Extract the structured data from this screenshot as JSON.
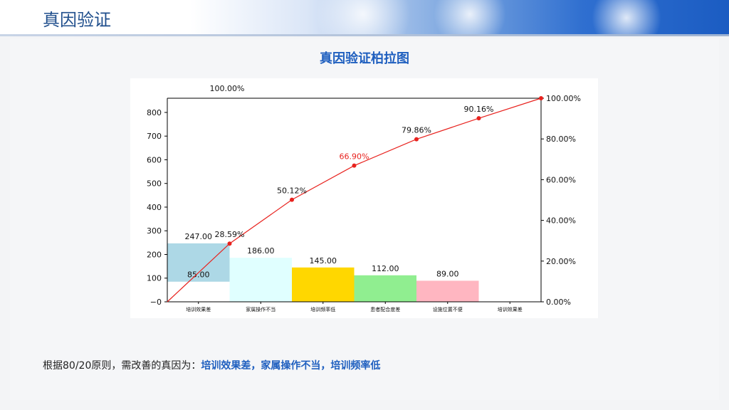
{
  "header": {
    "title": "真因验证"
  },
  "chart_data": {
    "type": "bar",
    "title": "真因验证柏拉图",
    "categories": [
      "培训效果差",
      "家属操作不当",
      "培训频率低",
      "患者配合度差",
      "设施位置不便",
      "培训效果差"
    ],
    "bars": [
      {
        "base": 85,
        "value": 247,
        "label": "247.00",
        "base_label": "85.00",
        "color": "#add8e6"
      },
      {
        "base": 0,
        "value": 186,
        "label": "186.00",
        "color": "#e0ffff"
      },
      {
        "base": 0,
        "value": 145,
        "label": "145.00",
        "color": "#ffd700"
      },
      {
        "base": 0,
        "value": 112,
        "label": "112.00",
        "color": "#90ee90"
      },
      {
        "base": 0,
        "value": 89,
        "label": "89.00",
        "color": "#ffb6c1"
      }
    ],
    "cumulative": {
      "x": [
        0,
        1,
        2,
        3,
        4,
        5,
        6
      ],
      "values": [
        0,
        28.59,
        50.12,
        66.9,
        79.86,
        90.16,
        100.0
      ],
      "labels": [
        "",
        "28.59%",
        "50.12%",
        "66.90%",
        "79.86%",
        "90.16%",
        "100.00%"
      ],
      "highlight_index": 3,
      "line_color": "#e8221e"
    },
    "ylim": [
      0,
      860
    ],
    "yticks": [
      0,
      100,
      200,
      300,
      400,
      500,
      600,
      700,
      800
    ],
    "y2ticks": [
      {
        "v": 0,
        "label": "0.00%"
      },
      {
        "v": 20,
        "label": "20.00%"
      },
      {
        "v": 40,
        "label": "40.00%"
      },
      {
        "v": 60,
        "label": "60.00%"
      },
      {
        "v": 80,
        "label": "80.00%"
      },
      {
        "v": 100,
        "label": "100.00%"
      }
    ],
    "top_left_label": "100.00%"
  },
  "footer": {
    "prefix": "根据80/20原则，需改善的真因为：",
    "highlight": "培训效果差，家属操作不当，培训频率低"
  }
}
